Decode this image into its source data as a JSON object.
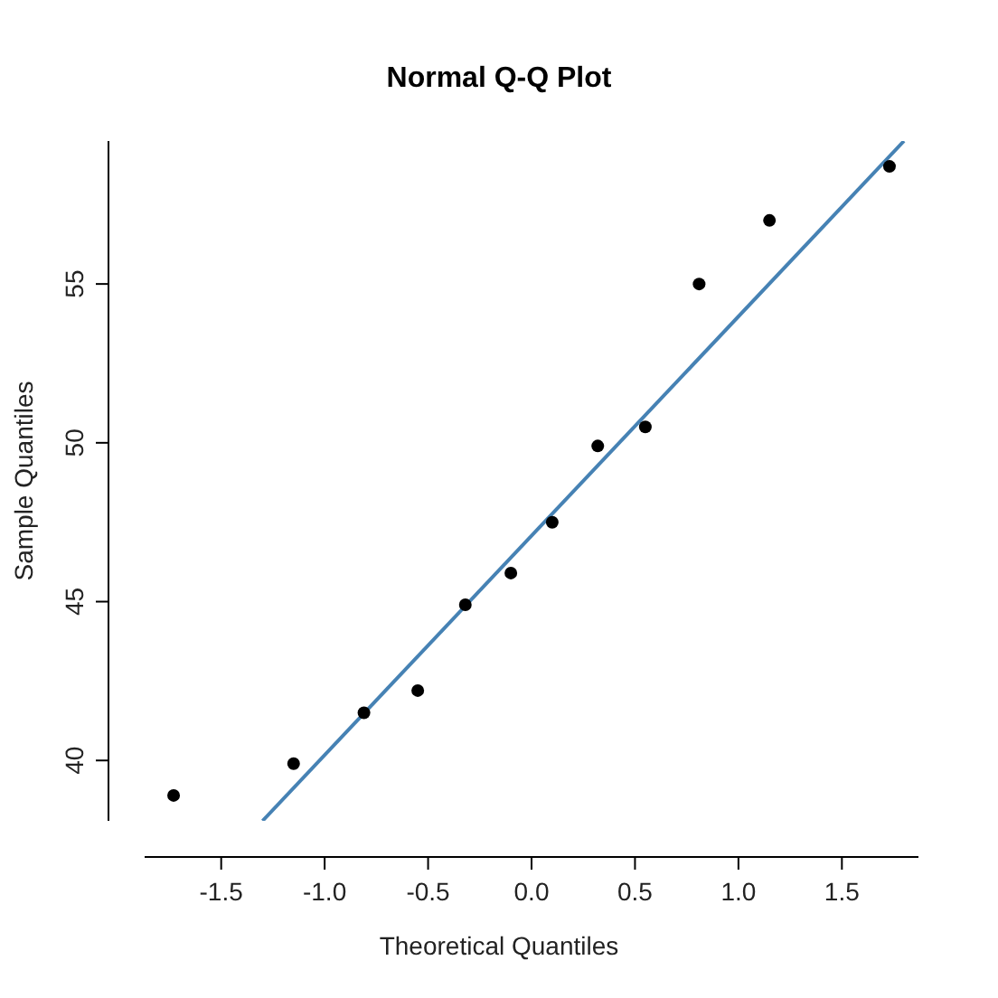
{
  "chart_data": {
    "type": "scatter",
    "title": "Normal Q-Q Plot",
    "xlabel": "Theoretical Quantiles",
    "ylabel": "Sample Quantiles",
    "xlim": [
      -1.87,
      1.87
    ],
    "ylim": [
      38.1,
      59.5
    ],
    "xticks": [
      -1.5,
      {
        "value": -1.0,
        "label": "-1.0"
      },
      -0.5,
      {
        "value": 0,
        "label": "0.0"
      },
      0.5,
      {
        "value": 1,
        "label": "1.0"
      },
      1.5
    ],
    "yticks": [
      40,
      45,
      50,
      55
    ],
    "grid": false,
    "series": [
      {
        "color": "#000000",
        "marker": "circle",
        "x": [
          -1.73,
          -1.15,
          -0.81,
          -0.55,
          -0.32,
          -0.1,
          0.1,
          0.32,
          0.55,
          0.81,
          1.15,
          1.73
        ],
        "values": [
          38.9,
          39.9,
          41.5,
          42.2,
          44.9,
          45.9,
          47.5,
          49.9,
          50.5,
          55.0,
          57.0,
          58.7
        ]
      },
      {
        "type": "line",
        "color": "#4682b4",
        "marker": "none",
        "line_style": "solid",
        "x": [
          -1.3,
          1.8
        ],
        "values": [
          38.1,
          59.5
        ]
      }
    ]
  }
}
